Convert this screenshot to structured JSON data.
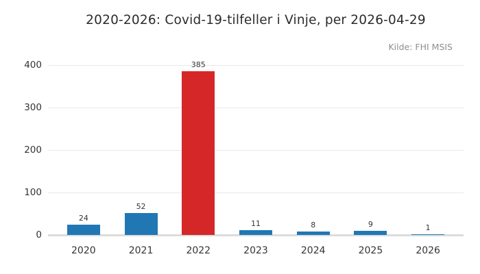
{
  "title": "2020-2026: Covid-19-tilfeller i Vinje, per 2026-04-29",
  "source_note": "Kilde: FHI MSIS",
  "colors": {
    "bar_default": "#2077b4",
    "bar_highlight": "#d62728",
    "gridline": "#e9e9e9",
    "baseline": "#dcdcdc",
    "title_text": "#2b2b2b",
    "source_text": "#8e8e8e",
    "tick_text": "#333333"
  },
  "chart_data": {
    "type": "bar",
    "title": "2020-2026: Covid-19-tilfeller i Vinje, per 2026-04-29",
    "annotation": "Kilde: FHI MSIS",
    "categories": [
      "2020",
      "2021",
      "2022",
      "2023",
      "2024",
      "2025",
      "2026"
    ],
    "values": [
      24,
      52,
      385,
      11,
      8,
      9,
      1
    ],
    "value_labels": [
      "24",
      "52",
      "385",
      "11",
      "8",
      "9",
      "1"
    ],
    "bar_colors": [
      "#2077b4",
      "#2077b4",
      "#d62728",
      "#2077b4",
      "#2077b4",
      "#2077b4",
      "#2077b4"
    ],
    "highlighted_category": "2022",
    "xlabel": "",
    "ylabel": "",
    "ylim": [
      0,
      400
    ],
    "yticks": [
      0,
      100,
      200,
      300,
      400
    ],
    "grid": true,
    "legend_position": "none"
  }
}
